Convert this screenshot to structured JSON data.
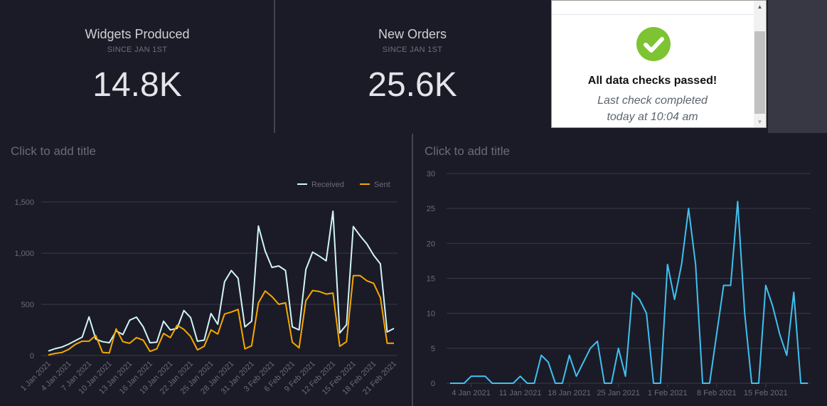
{
  "kpis": [
    {
      "title": "Widgets Produced",
      "subtitle": "SINCE JAN 1ST",
      "value": "14.8K"
    },
    {
      "title": "New Orders",
      "subtitle": "SINCE JAN 1ST",
      "value": "25.6K"
    }
  ],
  "status_card": {
    "icon": "check-circle-icon",
    "message": "All data checks passed!",
    "line1": "Last check completed",
    "line2": "today at 10:04 am",
    "accent": "#7dc332"
  },
  "charts": [
    {
      "title_placeholder": "Click to add title"
    },
    {
      "title_placeholder": "Click to add title"
    }
  ],
  "chart_data": [
    {
      "type": "line",
      "x_start": "1 Jan 2021",
      "x_end": "21 Feb 2021",
      "x_step": "1 day",
      "x_tick_labels": [
        "1 Jan 2021",
        "4 Jan 2021",
        "7 Jan 2021",
        "10 Jan 2021",
        "13 Jan 2021",
        "16 Jan 2021",
        "19 Jan 2021",
        "22 Jan 2021",
        "25 Jan 2021",
        "28 Jan 2021",
        "31 Jan 2021",
        "3 Feb 2021",
        "6 Feb 2021",
        "9 Feb 2021",
        "12 Feb 2021",
        "15 Feb 2021",
        "18 Feb 2021",
        "21 Feb 2021"
      ],
      "y_tick_labels": [
        "0",
        "500",
        "1,000",
        "1,500"
      ],
      "ylim": [
        0,
        1500
      ],
      "grid": true,
      "legend": "top-right",
      "series": [
        {
          "name": "Received",
          "color": "#d2f4f8",
          "values": [
            44,
            67,
            83,
            111,
            146,
            180,
            377,
            160,
            135,
            125,
            240,
            205,
            345,
            375,
            280,
            125,
            130,
            335,
            250,
            265,
            440,
            370,
            140,
            150,
            410,
            305,
            720,
            830,
            755,
            280,
            335,
            1265,
            1020,
            860,
            875,
            830,
            280,
            250,
            840,
            1010,
            970,
            925,
            1410,
            220,
            300,
            1260,
            1170,
            1090,
            980,
            895,
            230,
            265
          ]
        },
        {
          "name": "Sent",
          "color": "#f5a800",
          "values": [
            5,
            20,
            30,
            60,
            110,
            140,
            140,
            195,
            30,
            25,
            260,
            135,
            120,
            175,
            150,
            40,
            65,
            215,
            175,
            295,
            255,
            185,
            55,
            90,
            250,
            210,
            405,
            425,
            450,
            65,
            95,
            515,
            630,
            575,
            500,
            515,
            130,
            75,
            535,
            635,
            625,
            600,
            610,
            90,
            135,
            780,
            780,
            730,
            705,
            565,
            120,
            120
          ]
        }
      ]
    },
    {
      "type": "line",
      "x_start": "1 Jan 2021",
      "x_end": "21 Feb 2021",
      "x_step": "1 day",
      "x_tick_labels": [
        "4 Jan 2021",
        "11 Jan 2021",
        "18 Jan 2021",
        "25 Jan 2021",
        "1 Feb 2021",
        "8 Feb 2021",
        "15 Feb 2021"
      ],
      "y_tick_labels": [
        "0",
        "5",
        "10",
        "15",
        "20",
        "25",
        "30"
      ],
      "ylim": [
        0,
        30
      ],
      "grid": true,
      "series": [
        {
          "color": "#3fc1ef",
          "values": [
            0,
            0,
            0,
            1,
            1,
            1,
            0,
            0,
            0,
            0,
            1,
            0,
            0,
            4,
            3,
            0,
            0,
            4,
            1,
            3,
            5,
            6,
            0,
            0,
            5,
            1,
            13,
            12,
            10,
            0,
            0,
            17,
            12,
            17,
            25,
            17,
            0,
            0,
            7,
            14,
            14,
            26,
            10,
            0,
            0,
            14,
            11,
            7,
            4,
            13,
            0,
            0
          ]
        }
      ]
    }
  ]
}
